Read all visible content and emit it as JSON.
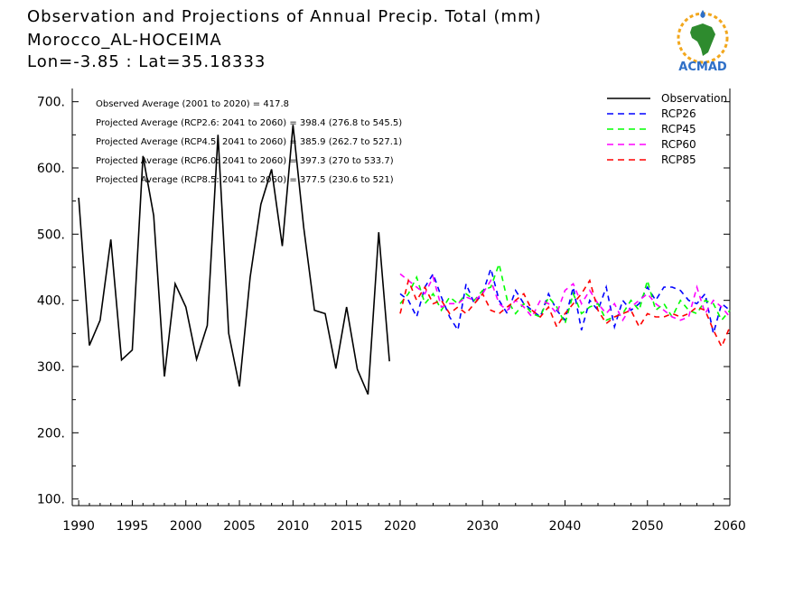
{
  "header": {
    "line1": "Observation and Projections of Annual Precip. Total (mm)",
    "line2": "Morocco_AL-HOCEIMA",
    "line3": "Lon=-3.85 : Lat=35.18333"
  },
  "logo": {
    "text": "ACMAD",
    "icon": "acmad-africa-logo"
  },
  "stats": [
    "Observed Average (2001 to 2020) = 417.8",
    "Projected Average (RCP2.6: 2041 to 2060) = 398.4 (276.8 to 545.5)",
    "Projected Average (RCP4.5: 2041 to 2060) = 385.9 (262.7 to 527.1)",
    "Projected Average (RCP6.0: 2041 to 2060) = 397.3 (270 to 533.7)",
    "Projected Average (RCP8.5: 2041 to 2060) = 377.5 (230.6 to 521)"
  ],
  "colors": {
    "Observation": "#000000",
    "RCP26": "#0000ff",
    "RCP45": "#00ff00",
    "RCP60": "#ff00ff",
    "RCP85": "#ff0000"
  },
  "chart_data": {
    "type": "line",
    "ylim": [
      90,
      720
    ],
    "yticks": [
      100,
      200,
      300,
      400,
      500,
      600,
      700
    ],
    "ytick_labels": [
      "100.",
      "200.",
      "300.",
      "400.",
      "500.",
      "600.",
      "700."
    ],
    "xticks_left": [
      1990,
      1995,
      2000,
      2005,
      2010,
      2015,
      2020
    ],
    "xticks_left_labels": [
      "1990",
      "1995",
      "2000",
      "2005",
      "2010",
      "2015",
      "2020"
    ],
    "xticks_right": [
      2030,
      2040,
      2050,
      2060
    ],
    "xticks_right_labels": [
      "2030",
      "2040",
      "2050",
      "2060"
    ],
    "legend_position": "top-right",
    "observation": {
      "name": "Observation",
      "x": [
        1990,
        1991,
        1992,
        1993,
        1994,
        1995,
        1996,
        1997,
        1998,
        1999,
        2000,
        2001,
        2002,
        2003,
        2004,
        2005,
        2006,
        2007,
        2008,
        2009,
        2010,
        2011,
        2012,
        2013,
        2014,
        2015,
        2016,
        2017,
        2018,
        2019,
        2020
      ],
      "y": [
        555,
        332,
        370,
        492,
        310,
        325,
        618,
        528,
        285,
        425,
        390,
        311,
        362,
        650,
        350,
        270,
        435,
        545,
        598,
        482,
        665,
        510,
        385,
        380,
        297,
        390,
        296,
        258,
        503,
        308,
        null
      ]
    },
    "projection_x": [
      2020,
      2021,
      2022,
      2023,
      2024,
      2025,
      2026,
      2027,
      2028,
      2029,
      2030,
      2031,
      2032,
      2033,
      2034,
      2035,
      2036,
      2037,
      2038,
      2039,
      2040,
      2041,
      2042,
      2043,
      2044,
      2045,
      2046,
      2047,
      2048,
      2049,
      2050,
      2051,
      2052,
      2053,
      2054,
      2055,
      2056,
      2057,
      2058,
      2059,
      2060
    ],
    "series": [
      {
        "name": "RCP26",
        "values": [
          410,
          400,
          375,
          420,
          440,
          405,
          375,
          355,
          425,
          395,
          410,
          448,
          400,
          380,
          415,
          395,
          385,
          375,
          410,
          385,
          370,
          420,
          355,
          400,
          385,
          420,
          360,
          400,
          385,
          395,
          420,
          400,
          420,
          420,
          415,
          400,
          395,
          410,
          350,
          395,
          385
        ]
      },
      {
        "name": "RCP45",
        "values": [
          395,
          410,
          435,
          395,
          410,
          385,
          405,
          395,
          410,
          400,
          415,
          420,
          455,
          400,
          380,
          395,
          380,
          375,
          405,
          390,
          365,
          410,
          380,
          390,
          395,
          370,
          375,
          380,
          400,
          385,
          430,
          385,
          395,
          375,
          400,
          385,
          380,
          400,
          395,
          370,
          385
        ]
      },
      {
        "name": "RCP60",
        "values": [
          440,
          430,
          420,
          410,
          435,
          390,
          395,
          395,
          405,
          400,
          410,
          430,
          395,
          385,
          400,
          390,
          375,
          400,
          395,
          380,
          415,
          425,
          395,
          415,
          395,
          380,
          395,
          370,
          390,
          400,
          410,
          395,
          385,
          375,
          370,
          375,
          420,
          380,
          400,
          390,
          375
        ]
      },
      {
        "name": "RCP85",
        "values": [
          380,
          430,
          400,
          420,
          395,
          400,
          380,
          390,
          380,
          395,
          410,
          385,
          380,
          390,
          400,
          410,
          385,
          375,
          390,
          360,
          380,
          395,
          410,
          430,
          385,
          365,
          375,
          380,
          385,
          360,
          380,
          375,
          375,
          380,
          375,
          380,
          390,
          385,
          355,
          330,
          360
        ]
      }
    ]
  }
}
